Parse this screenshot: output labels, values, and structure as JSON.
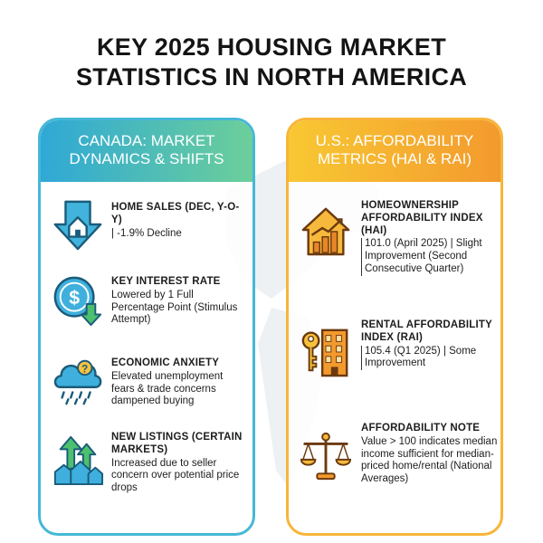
{
  "title_line1": "KEY 2025 HOUSING MARKET",
  "title_line2": "STATISTICS IN NORTH AMERICA",
  "canada": {
    "header_line1": "CANADA: MARKET",
    "header_line2": "DYNAMICS & SHIFTS",
    "items": [
      {
        "icon": "house-down-arrow-icon",
        "title": "HOME SALES (DEC, Y-O-Y)",
        "desc": "| -1.9% Decline"
      },
      {
        "icon": "dollar-down-arrow-icon",
        "title": "KEY INTEREST RATE",
        "desc": "Lowered by 1 Full Percentage Point (Stimulus Attempt)"
      },
      {
        "icon": "storm-cloud-question-icon",
        "title": "ECONOMIC ANXIETY",
        "desc": "Elevated unemployment fears & trade concerns dampened buying"
      },
      {
        "icon": "houses-up-arrows-icon",
        "title": "NEW LISTINGS (CERTAIN MARKETS)",
        "desc": "Increased due to seller concern over potential price drops"
      }
    ]
  },
  "us": {
    "header_line1": "U.S.: AFFORDABILITY",
    "header_line2": "METRICS (HAI & RAI)",
    "items": [
      {
        "icon": "house-chart-icon",
        "title": "HOMEOWNERSHIP AFFORDABILITY INDEX (HAI)",
        "desc": "101.0 (April 2025) | Slight Improvement (Second Consecutive Quarter)"
      },
      {
        "icon": "key-building-icon",
        "title": "RENTAL AFFORDABILITY INDEX (RAI)",
        "desc": "105.4 (Q1 2025) | Some Improvement"
      },
      {
        "icon": "balance-scale-icon",
        "title": "AFFORDABILITY NOTE",
        "desc": "Value > 100 indicates median income sufficient for median-priced home/rental (National Averages)"
      }
    ]
  },
  "colors": {
    "canada_accent": "#2fa8d6",
    "us_accent": "#f39a2e"
  }
}
